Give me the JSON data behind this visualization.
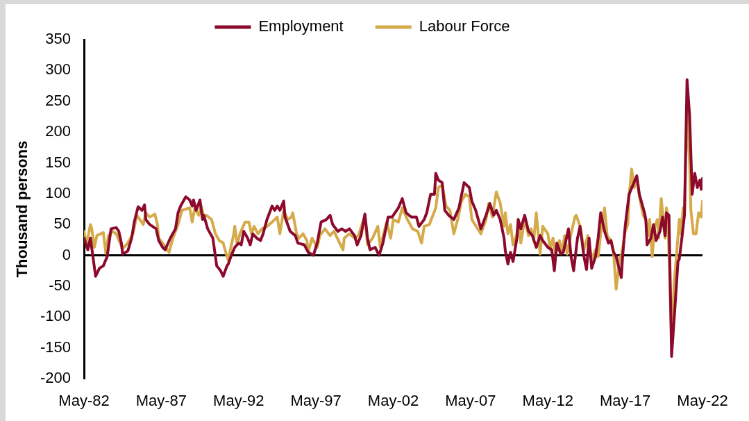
{
  "chart_data": {
    "type": "line",
    "ylabel": "Thousand persons",
    "xlim": [
      "1982-05",
      "2022-05"
    ],
    "xticks": [
      {
        "value": "1982-05",
        "label": "May-82"
      },
      {
        "value": "1987-05",
        "label": "May-87"
      },
      {
        "value": "1992-05",
        "label": "May-92"
      },
      {
        "value": "1997-05",
        "label": "May-97"
      },
      {
        "value": "2002-05",
        "label": "May-02"
      },
      {
        "value": "2007-05",
        "label": "May-07"
      },
      {
        "value": "2012-05",
        "label": "May-12"
      },
      {
        "value": "2017-05",
        "label": "May-17"
      },
      {
        "value": "2022-05",
        "label": "May-22"
      }
    ],
    "ylim": [
      -200,
      350
    ],
    "yticks": [
      -200,
      -150,
      -100,
      -50,
      0,
      50,
      100,
      150,
      200,
      250,
      300,
      350
    ],
    "grid": false,
    "legend": "top",
    "marker": "none",
    "line_style": "solid",
    "ref_lines": [
      {
        "axis": "y",
        "value": 0,
        "color": "#000000"
      }
    ],
    "series": [
      {
        "name": "Employment",
        "color": "#8c0a2c",
        "x": [
          "1982-05",
          "1982-08",
          "1982-10",
          "1983-02",
          "1983-05",
          "1983-08",
          "1983-11",
          "1984-02",
          "1984-06",
          "1984-08",
          "1984-10",
          "1984-11",
          "1985-03",
          "1985-06",
          "1985-08",
          "1985-11",
          "1986-02",
          "1986-04",
          "1986-05",
          "1986-08",
          "1987-01",
          "1987-03",
          "1987-06",
          "1987-08",
          "1987-12",
          "1988-04",
          "1988-06",
          "1988-08",
          "1988-12",
          "1989-03",
          "1989-05",
          "1989-06",
          "1989-08",
          "1989-11",
          "1990-01",
          "1990-02",
          "1990-05",
          "1990-09",
          "1990-11",
          "1990-12",
          "1991-03",
          "1991-05",
          "1991-08",
          "1991-09",
          "1991-11",
          "1992-02",
          "1992-05",
          "1992-07",
          "1992-09",
          "1992-12",
          "1993-02",
          "1993-04",
          "1993-07",
          "1993-10",
          "1993-12",
          "1994-03",
          "1994-07",
          "1994-09",
          "1994-11",
          "1995-01",
          "1995-04",
          "1995-05",
          "1995-09",
          "1996-01",
          "1996-03",
          "1996-08",
          "1996-11",
          "1997-03",
          "1997-06",
          "1997-09",
          "1998-01",
          "1998-04",
          "1998-06",
          "1998-10",
          "1999-01",
          "1999-04",
          "1999-07",
          "1999-11",
          "2000-01",
          "2000-04",
          "2000-07",
          "2000-09",
          "2000-11",
          "2001-03",
          "2001-06",
          "2001-09",
          "2002-01",
          "2002-04",
          "2002-09",
          "2002-12",
          "2003-03",
          "2003-07",
          "2003-11",
          "2004-01",
          "2004-05",
          "2004-07",
          "2004-10",
          "2005-01",
          "2005-02",
          "2005-04",
          "2005-07",
          "2005-09",
          "2005-12",
          "2006-04",
          "2006-08",
          "2006-12",
          "2007-04",
          "2007-06",
          "2007-09",
          "2008-01",
          "2008-05",
          "2008-08",
          "2008-11",
          "2009-01",
          "2009-04",
          "2009-07",
          "2009-08",
          "2009-10",
          "2009-12",
          "2010-02",
          "2010-05",
          "2010-06",
          "2010-08",
          "2010-11",
          "2011-02",
          "2011-05",
          "2011-08",
          "2011-11",
          "2012-01",
          "2012-05",
          "2012-08",
          "2012-10",
          "2012-12",
          "2013-03",
          "2013-05",
          "2013-09",
          "2013-11",
          "2014-01",
          "2014-04",
          "2014-06",
          "2014-09",
          "2014-11",
          "2015-01",
          "2015-03",
          "2015-06",
          "2015-08",
          "2015-10",
          "2016-01",
          "2016-04",
          "2016-06",
          "2016-08",
          "2016-10",
          "2017-02",
          "2017-03",
          "2017-05",
          "2017-08",
          "2017-11",
          "2018-02",
          "2018-04",
          "2018-06",
          "2018-08",
          "2018-09",
          "2018-10",
          "2019-01",
          "2019-03",
          "2019-05",
          "2019-08",
          "2019-10",
          "2019-12",
          "2020-01",
          "2020-03",
          "2020-05",
          "2020-07",
          "2020-10",
          "2020-11",
          "2021-01",
          "2021-03",
          "2021-05",
          "2021-07",
          "2021-09",
          "2021-11",
          "2022-01",
          "2022-03",
          "2022-04",
          "2022-05"
        ],
        "values": [
          28,
          9,
          28,
          -34,
          -21,
          -17,
          -2,
          43,
          45,
          39,
          20,
          2,
          7,
          28,
          54,
          79,
          73,
          82,
          58,
          50,
          43,
          24,
          13,
          9,
          28,
          43,
          69,
          80,
          95,
          90,
          80,
          90,
          73,
          90,
          58,
          65,
          43,
          28,
          -2,
          -17,
          -25,
          -34,
          -17,
          -14,
          -2,
          13,
          20,
          17,
          39,
          28,
          17,
          35,
          28,
          24,
          35,
          58,
          80,
          73,
          80,
          73,
          88,
          62,
          39,
          32,
          20,
          17,
          5,
          0,
          20,
          54,
          58,
          65,
          50,
          39,
          43,
          39,
          43,
          32,
          17,
          32,
          67,
          28,
          9,
          13,
          0,
          20,
          62,
          62,
          77,
          92,
          69,
          62,
          62,
          47,
          58,
          69,
          99,
          99,
          133,
          122,
          118,
          73,
          65,
          58,
          77,
          118,
          110,
          88,
          73,
          43,
          65,
          84,
          65,
          73,
          58,
          28,
          7,
          -14,
          5,
          -10,
          28,
          58,
          43,
          65,
          39,
          32,
          13,
          32,
          24,
          13,
          9,
          -25,
          20,
          2,
          5,
          43,
          -2,
          -25,
          28,
          47,
          -2,
          -23,
          28,
          -21,
          -2,
          28,
          69,
          39,
          20,
          24,
          5,
          -2,
          -36,
          -2,
          47,
          99,
          114,
          129,
          99,
          84,
          69,
          58,
          17,
          28,
          50,
          24,
          39,
          62,
          32,
          69,
          65,
          -164,
          -104,
          -10,
          -6,
          28,
          65,
          285,
          227,
          99,
          133,
          110,
          122,
          107,
          125
        ]
      },
      {
        "name": "Labour Force",
        "color": "#d4aa4a",
        "x": [
          "1982-05",
          "1982-07",
          "1982-10",
          "1982-11",
          "1983-01",
          "1983-03",
          "1983-06",
          "1983-08",
          "1983-10",
          "1983-12",
          "1984-03",
          "1984-06",
          "1984-09",
          "1984-11",
          "1985-03",
          "1985-07",
          "1985-10",
          "1986-03",
          "1986-05",
          "1986-08",
          "1986-12",
          "1987-02",
          "1987-03",
          "1987-07",
          "1987-11",
          "1988-02",
          "1988-06",
          "1988-09",
          "1989-03",
          "1989-05",
          "1989-07",
          "1989-10",
          "1989-12",
          "1990-02",
          "1990-04",
          "1990-08",
          "1990-11",
          "1991-02",
          "1991-05",
          "1991-08",
          "1991-09",
          "1991-11",
          "1992-01",
          "1992-02",
          "1992-04",
          "1992-06",
          "1992-10",
          "1993-01",
          "1993-03",
          "1993-05",
          "1993-08",
          "1993-11",
          "1994-03",
          "1994-07",
          "1994-11",
          "1995-01",
          "1995-04",
          "1995-07",
          "1995-10",
          "1995-11",
          "1996-02",
          "1996-04",
          "1996-07",
          "1996-10",
          "1996-11",
          "1997-02",
          "1997-06",
          "1997-08",
          "1997-12",
          "1998-04",
          "1998-07",
          "1999-02",
          "1999-03",
          "1999-07",
          "1999-11",
          "2000-02",
          "2000-07",
          "2000-09",
          "2001-01",
          "2001-05",
          "2001-07",
          "2001-10",
          "2001-12",
          "2002-03",
          "2002-05",
          "2002-09",
          "2002-12",
          "2003-04",
          "2003-08",
          "2003-12",
          "2004-03",
          "2004-05",
          "2004-09",
          "2005-02",
          "2005-04",
          "2005-07",
          "2005-10",
          "2006-01",
          "2006-04",
          "2006-07",
          "2006-10",
          "2007-01",
          "2007-04",
          "2007-06",
          "2008-01",
          "2008-05",
          "2008-07",
          "2008-10",
          "2008-11",
          "2009-01",
          "2009-04",
          "2009-07",
          "2009-08",
          "2009-10",
          "2009-12",
          "2010-02",
          "2010-05",
          "2010-06",
          "2010-08",
          "2010-11",
          "2011-02",
          "2011-04",
          "2011-06",
          "2011-08",
          "2011-11",
          "2012-01",
          "2012-05",
          "2012-07",
          "2012-09",
          "2012-11",
          "2013-02",
          "2013-04",
          "2013-06",
          "2013-08",
          "2013-11",
          "2014-02",
          "2014-03",
          "2014-06",
          "2014-09",
          "2014-12",
          "2015-03",
          "2015-06",
          "2015-08",
          "2015-10",
          "2016-01",
          "2016-03",
          "2016-06",
          "2016-08",
          "2016-10",
          "2017-01",
          "2017-02",
          "2017-05",
          "2017-07",
          "2017-08",
          "2017-10",
          "2017-12",
          "2018-02",
          "2018-04",
          "2018-07",
          "2018-09",
          "2018-11",
          "2018-12",
          "2019-02",
          "2019-04",
          "2019-06",
          "2019-07",
          "2019-09",
          "2019-12",
          "2020-01",
          "2020-02",
          "2020-05",
          "2020-07",
          "2020-09",
          "2020-11",
          "2020-12",
          "2021-02",
          "2021-03",
          "2021-05",
          "2021-07",
          "2021-08",
          "2021-10",
          "2021-12",
          "2022-02",
          "2022-04",
          "2022-05"
        ],
        "values": [
          39,
          17,
          50,
          43,
          13,
          32,
          35,
          37,
          3,
          32,
          39,
          35,
          20,
          11,
          20,
          35,
          65,
          50,
          69,
          62,
          67,
          50,
          28,
          17,
          5,
          28,
          50,
          73,
          77,
          54,
          77,
          65,
          80,
          62,
          65,
          58,
          35,
          24,
          20,
          -2,
          -8,
          13,
          32,
          47,
          17,
          35,
          54,
          54,
          35,
          47,
          35,
          43,
          47,
          54,
          62,
          35,
          73,
          58,
          62,
          69,
          35,
          28,
          35,
          24,
          5,
          28,
          13,
          32,
          43,
          32,
          39,
          9,
          28,
          35,
          28,
          32,
          65,
          17,
          28,
          47,
          13,
          39,
          54,
          28,
          58,
          54,
          77,
          58,
          43,
          39,
          20,
          47,
          50,
          77,
          110,
          114,
          80,
          73,
          35,
          58,
          88,
          99,
          95,
          58,
          35,
          58,
          84,
          62,
          77,
          103,
          85,
          47,
          69,
          35,
          50,
          17,
          35,
          58,
          20,
          58,
          32,
          43,
          24,
          69,
          2,
          47,
          35,
          9,
          28,
          2,
          24,
          5,
          32,
          2,
          35,
          62,
          65,
          47,
          9,
          32,
          -6,
          9,
          -2,
          35,
          77,
          32,
          24,
          5,
          -55,
          -2,
          -2,
          39,
          50,
          95,
          140,
          110,
          125,
          95,
          65,
          58,
          32,
          58,
          -2,
          47,
          58,
          28,
          92,
          28,
          77,
          65,
          -130,
          -47,
          5,
          58,
          35,
          77,
          65,
          238,
          148,
          73,
          35,
          35,
          69,
          62,
          88
        ]
      }
    ]
  }
}
